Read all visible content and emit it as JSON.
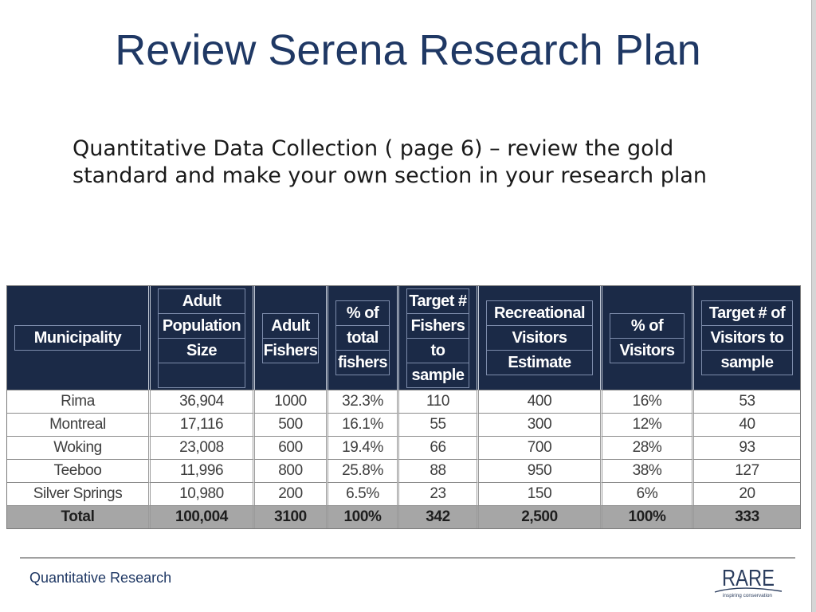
{
  "slide": {
    "title": "Review Serena Research Plan",
    "body_lines": [
      "Quantitative Data Collection ( page 6) – review the gold",
      "standard and make your own section in your research plan"
    ]
  },
  "table": {
    "headers": [
      [
        "Municipality"
      ],
      [
        "Adult",
        "Population",
        "Size"
      ],
      [
        "Adult",
        "Fishers"
      ],
      [
        "% of",
        "total",
        "fishers"
      ],
      [
        "Target #",
        "Fishers",
        "to",
        "sample"
      ],
      [
        "Recreational",
        "Visitors",
        "Estimate"
      ],
      [
        "% of",
        "Visitors"
      ],
      [
        "Target # of",
        "Visitors to",
        "sample"
      ]
    ],
    "rows": [
      [
        "Rima",
        "36,904",
        "1000",
        "32.3%",
        "110",
        "400",
        "16%",
        "53"
      ],
      [
        "Montreal",
        "17,116",
        "500",
        "16.1%",
        "55",
        "300",
        "12%",
        "40"
      ],
      [
        "Woking",
        "23,008",
        "600",
        "19.4%",
        "66",
        "700",
        "28%",
        "93"
      ],
      [
        "Teeboo",
        "11,996",
        "800",
        "25.8%",
        "88",
        "950",
        "38%",
        "127"
      ],
      [
        "Silver Springs",
        "10,980",
        "200",
        "6.5%",
        "23",
        "150",
        "6%",
        "20"
      ]
    ],
    "total": [
      "Total",
      "100,004",
      "3100",
      "100%",
      "342",
      "2,500",
      "100%",
      "333"
    ]
  },
  "footer": {
    "label": "Quantitative Research",
    "logo": {
      "wordmark": "RARE",
      "tagline": "inspiring conservation"
    }
  },
  "colors": {
    "title": "#1f3864",
    "header_background": "#1b2a47",
    "header_text": "#ffffff",
    "total_background": "#a6a6a6",
    "footer_text": "#1f3864"
  }
}
